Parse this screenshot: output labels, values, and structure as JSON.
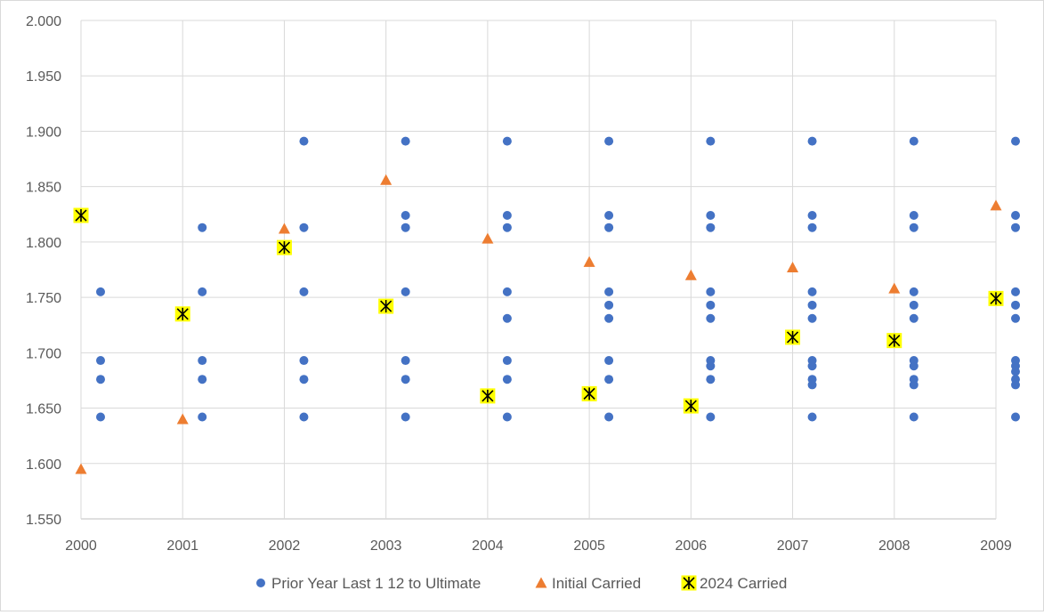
{
  "chart_data": {
    "type": "scatter",
    "title": "",
    "xlabel": "",
    "ylabel": "",
    "xlim": [
      2000,
      2009
    ],
    "ylim": [
      1.55,
      2.0
    ],
    "x_ticks": [
      "2000",
      "2001",
      "2002",
      "2003",
      "2004",
      "2005",
      "2006",
      "2007",
      "2008",
      "2009"
    ],
    "y_ticks": [
      "1.550",
      "1.600",
      "1.650",
      "1.700",
      "1.750",
      "1.800",
      "1.850",
      "1.900",
      "1.950",
      "2.000"
    ],
    "grid": "on",
    "legend_position": "bottom",
    "series": [
      {
        "name": "Prior Year Last 1 12 to Ultimate",
        "marker": "circle",
        "color": "#4472C4",
        "points": [
          {
            "x": 2000,
            "y": 1.755
          },
          {
            "x": 2000,
            "y": 1.693
          },
          {
            "x": 2000,
            "y": 1.676
          },
          {
            "x": 2000,
            "y": 1.642
          },
          {
            "x": 2001,
            "y": 1.813
          },
          {
            "x": 2001,
            "y": 1.755
          },
          {
            "x": 2001,
            "y": 1.693
          },
          {
            "x": 2001,
            "y": 1.676
          },
          {
            "x": 2001,
            "y": 1.642
          },
          {
            "x": 2002,
            "y": 1.891
          },
          {
            "x": 2002,
            "y": 1.813
          },
          {
            "x": 2002,
            "y": 1.755
          },
          {
            "x": 2002,
            "y": 1.693
          },
          {
            "x": 2002,
            "y": 1.676
          },
          {
            "x": 2002,
            "y": 1.642
          },
          {
            "x": 2003,
            "y": 1.891
          },
          {
            "x": 2003,
            "y": 1.824
          },
          {
            "x": 2003,
            "y": 1.813
          },
          {
            "x": 2003,
            "y": 1.755
          },
          {
            "x": 2003,
            "y": 1.693
          },
          {
            "x": 2003,
            "y": 1.676
          },
          {
            "x": 2003,
            "y": 1.642
          },
          {
            "x": 2004,
            "y": 1.891
          },
          {
            "x": 2004,
            "y": 1.824
          },
          {
            "x": 2004,
            "y": 1.813
          },
          {
            "x": 2004,
            "y": 1.755
          },
          {
            "x": 2004,
            "y": 1.731
          },
          {
            "x": 2004,
            "y": 1.693
          },
          {
            "x": 2004,
            "y": 1.676
          },
          {
            "x": 2004,
            "y": 1.642
          },
          {
            "x": 2005,
            "y": 1.891
          },
          {
            "x": 2005,
            "y": 1.824
          },
          {
            "x": 2005,
            "y": 1.813
          },
          {
            "x": 2005,
            "y": 1.755
          },
          {
            "x": 2005,
            "y": 1.743
          },
          {
            "x": 2005,
            "y": 1.731
          },
          {
            "x": 2005,
            "y": 1.693
          },
          {
            "x": 2005,
            "y": 1.676
          },
          {
            "x": 2005,
            "y": 1.642
          },
          {
            "x": 2006,
            "y": 1.891
          },
          {
            "x": 2006,
            "y": 1.824
          },
          {
            "x": 2006,
            "y": 1.813
          },
          {
            "x": 2006,
            "y": 1.755
          },
          {
            "x": 2006,
            "y": 1.743
          },
          {
            "x": 2006,
            "y": 1.731
          },
          {
            "x": 2006,
            "y": 1.693
          },
          {
            "x": 2006,
            "y": 1.688
          },
          {
            "x": 2006,
            "y": 1.676
          },
          {
            "x": 2006,
            "y": 1.642
          },
          {
            "x": 2007,
            "y": 1.891
          },
          {
            "x": 2007,
            "y": 1.824
          },
          {
            "x": 2007,
            "y": 1.813
          },
          {
            "x": 2007,
            "y": 1.755
          },
          {
            "x": 2007,
            "y": 1.743
          },
          {
            "x": 2007,
            "y": 1.731
          },
          {
            "x": 2007,
            "y": 1.693
          },
          {
            "x": 2007,
            "y": 1.688
          },
          {
            "x": 2007,
            "y": 1.676
          },
          {
            "x": 2007,
            "y": 1.671
          },
          {
            "x": 2007,
            "y": 1.642
          },
          {
            "x": 2008,
            "y": 1.891
          },
          {
            "x": 2008,
            "y": 1.824
          },
          {
            "x": 2008,
            "y": 1.813
          },
          {
            "x": 2008,
            "y": 1.755
          },
          {
            "x": 2008,
            "y": 1.743
          },
          {
            "x": 2008,
            "y": 1.731
          },
          {
            "x": 2008,
            "y": 1.693
          },
          {
            "x": 2008,
            "y": 1.688
          },
          {
            "x": 2008,
            "y": 1.676
          },
          {
            "x": 2008,
            "y": 1.671
          },
          {
            "x": 2008,
            "y": 1.642
          },
          {
            "x": 2009,
            "y": 1.891
          },
          {
            "x": 2009,
            "y": 1.824
          },
          {
            "x": 2009,
            "y": 1.813
          },
          {
            "x": 2009,
            "y": 1.755
          },
          {
            "x": 2009,
            "y": 1.743
          },
          {
            "x": 2009,
            "y": 1.731
          },
          {
            "x": 2009,
            "y": 1.693
          },
          {
            "x": 2009,
            "y": 1.688
          },
          {
            "x": 2009,
            "y": 1.683
          },
          {
            "x": 2009,
            "y": 1.676
          },
          {
            "x": 2009,
            "y": 1.671
          },
          {
            "x": 2009,
            "y": 1.642
          }
        ]
      },
      {
        "name": "Initial Carried",
        "marker": "triangle",
        "color": "#ED7D31",
        "points": [
          {
            "x": 2000,
            "y": 1.595
          },
          {
            "x": 2001,
            "y": 1.64
          },
          {
            "x": 2002,
            "y": 1.812
          },
          {
            "x": 2003,
            "y": 1.856
          },
          {
            "x": 2004,
            "y": 1.803
          },
          {
            "x": 2005,
            "y": 1.782
          },
          {
            "x": 2006,
            "y": 1.77
          },
          {
            "x": 2007,
            "y": 1.777
          },
          {
            "x": 2008,
            "y": 1.758
          },
          {
            "x": 2009,
            "y": 1.833
          }
        ]
      },
      {
        "name": "2024 Carried",
        "marker": "star-box",
        "color": "#FFFF00",
        "points": [
          {
            "x": 2000,
            "y": 1.824
          },
          {
            "x": 2001,
            "y": 1.735
          },
          {
            "x": 2002,
            "y": 1.795
          },
          {
            "x": 2003,
            "y": 1.742
          },
          {
            "x": 2004,
            "y": 1.661
          },
          {
            "x": 2005,
            "y": 1.663
          },
          {
            "x": 2006,
            "y": 1.652
          },
          {
            "x": 2007,
            "y": 1.714
          },
          {
            "x": 2008,
            "y": 1.711
          },
          {
            "x": 2009,
            "y": 1.749
          }
        ]
      }
    ]
  }
}
